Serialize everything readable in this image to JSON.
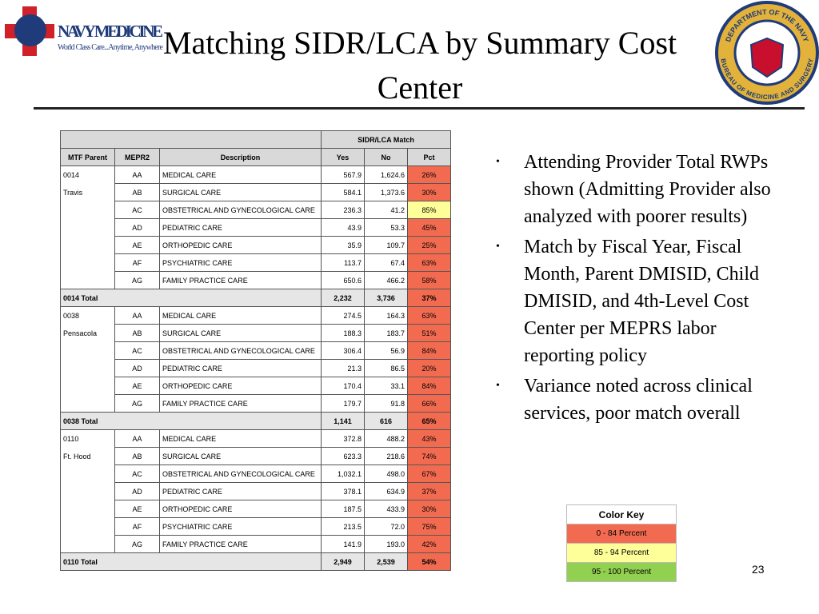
{
  "header": {
    "title": "Matching SIDR/LCA by Summary Cost Center",
    "logo_name": "NAVY MEDICINE",
    "logo_tagline": "World Class Care...Anytime, Anywhere",
    "seal_top": "DEPARTMENT OF THE NAVY",
    "seal_bottom": "BUREAU OF MEDICINE AND SURGERY"
  },
  "table": {
    "group_header": "SIDR/LCA Match",
    "columns": [
      "MTF Parent",
      "MEPR2",
      "Description",
      "Yes",
      "No",
      "Pct"
    ],
    "rows": [
      {
        "parent": "0014",
        "mepr2": "AA",
        "desc": "MEDICAL CARE",
        "yes": "567.9",
        "no": "1,624.6",
        "pct": "26%",
        "color": "#f26b50"
      },
      {
        "parent": "Travis",
        "mepr2": "AB",
        "desc": "SURGICAL CARE",
        "yes": "584.1",
        "no": "1,373.6",
        "pct": "30%",
        "color": "#f26b50"
      },
      {
        "mepr2": "AC",
        "desc": "OBSTETRICAL AND GYNECOLOGICAL CARE",
        "yes": "236.3",
        "no": "41.2",
        "pct": "85%",
        "color": "#ffff99"
      },
      {
        "mepr2": "AD",
        "desc": "PEDIATRIC CARE",
        "yes": "43.9",
        "no": "53.3",
        "pct": "45%",
        "color": "#f26b50"
      },
      {
        "mepr2": "AE",
        "desc": "ORTHOPEDIC CARE",
        "yes": "35.9",
        "no": "109.7",
        "pct": "25%",
        "color": "#f26b50"
      },
      {
        "mepr2": "AF",
        "desc": "PSYCHIATRIC CARE",
        "yes": "113.7",
        "no": "67.4",
        "pct": "63%",
        "color": "#f26b50"
      },
      {
        "mepr2": "AG",
        "desc": "FAMILY PRACTICE CARE",
        "yes": "650.6",
        "no": "466.2",
        "pct": "58%",
        "color": "#f26b50"
      },
      {
        "total": "0014 Total",
        "yes": "2,232",
        "no": "3,736",
        "pct": "37%",
        "color": "#f26b50"
      },
      {
        "parent": "0038",
        "mepr2": "AA",
        "desc": "MEDICAL CARE",
        "yes": "274.5",
        "no": "164.3",
        "pct": "63%",
        "color": "#f26b50"
      },
      {
        "parent": "Pensacola",
        "mepr2": "AB",
        "desc": "SURGICAL CARE",
        "yes": "188.3",
        "no": "183.7",
        "pct": "51%",
        "color": "#f26b50"
      },
      {
        "mepr2": "AC",
        "desc": "OBSTETRICAL AND GYNECOLOGICAL CARE",
        "yes": "306.4",
        "no": "56.9",
        "pct": "84%",
        "color": "#f26b50"
      },
      {
        "mepr2": "AD",
        "desc": "PEDIATRIC CARE",
        "yes": "21.3",
        "no": "86.5",
        "pct": "20%",
        "color": "#f26b50"
      },
      {
        "mepr2": "AE",
        "desc": "ORTHOPEDIC CARE",
        "yes": "170.4",
        "no": "33.1",
        "pct": "84%",
        "color": "#f26b50"
      },
      {
        "mepr2": "AG",
        "desc": "FAMILY PRACTICE CARE",
        "yes": "179.7",
        "no": "91.8",
        "pct": "66%",
        "color": "#f26b50"
      },
      {
        "total": "0038 Total",
        "yes": "1,141",
        "no": "616",
        "pct": "65%",
        "color": "#f26b50"
      },
      {
        "parent": "0110",
        "mepr2": "AA",
        "desc": "MEDICAL CARE",
        "yes": "372.8",
        "no": "488.2",
        "pct": "43%",
        "color": "#f26b50"
      },
      {
        "parent": "Ft. Hood",
        "mepr2": "AB",
        "desc": "SURGICAL CARE",
        "yes": "623.3",
        "no": "218.6",
        "pct": "74%",
        "color": "#f26b50"
      },
      {
        "mepr2": "AC",
        "desc": "OBSTETRICAL AND GYNECOLOGICAL CARE",
        "yes": "1,032.1",
        "no": "498.0",
        "pct": "67%",
        "color": "#f26b50"
      },
      {
        "mepr2": "AD",
        "desc": "PEDIATRIC CARE",
        "yes": "378.1",
        "no": "634.9",
        "pct": "37%",
        "color": "#f26b50"
      },
      {
        "mepr2": "AE",
        "desc": "ORTHOPEDIC CARE",
        "yes": "187.5",
        "no": "433.9",
        "pct": "30%",
        "color": "#f26b50"
      },
      {
        "mepr2": "AF",
        "desc": "PSYCHIATRIC CARE",
        "yes": "213.5",
        "no": "72.0",
        "pct": "75%",
        "color": "#f26b50"
      },
      {
        "mepr2": "AG",
        "desc": "FAMILY PRACTICE CARE",
        "yes": "141.9",
        "no": "193.0",
        "pct": "42%",
        "color": "#f26b50"
      },
      {
        "total": "0110 Total",
        "yes": "2,949",
        "no": "2,539",
        "pct": "54%",
        "color": "#f26b50"
      }
    ]
  },
  "bullets": [
    "Attending Provider Total RWPs shown (Admitting Provider also analyzed with poorer results)",
    "Match by Fiscal Year, Fiscal Month, Parent DMISID, Child DMISID, and 4th-Level Cost Center per MEPRS labor reporting policy",
    "Variance noted across clinical services, poor match overall"
  ],
  "color_key": {
    "title": "Color Key",
    "items": [
      {
        "label": "0 - 84 Percent",
        "color": "#f26b50"
      },
      {
        "label": "85 - 94 Percent",
        "color": "#ffff99"
      },
      {
        "label": "95 - 100 Percent",
        "color": "#92d050"
      }
    ]
  },
  "page_number": "23"
}
